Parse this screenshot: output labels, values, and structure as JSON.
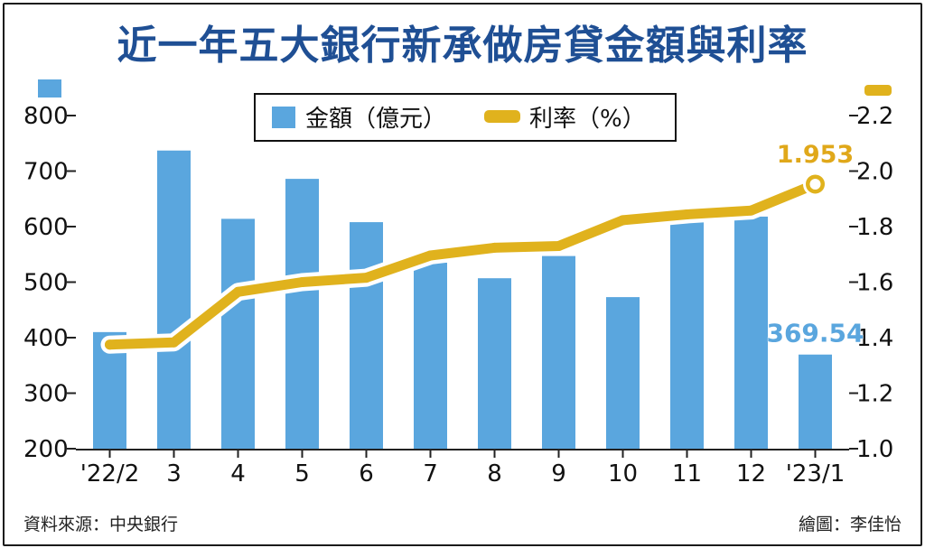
{
  "title": "近一年五大銀行新承做房貸金額與利率",
  "source": "資料來源：中央銀行",
  "credit": "繪圖：李佳怡",
  "chart_data": {
    "type": "bar",
    "categories": [
      "'22/2",
      "3",
      "4",
      "5",
      "6",
      "7",
      "8",
      "9",
      "10",
      "11",
      "12",
      "'23/1"
    ],
    "series": [
      {
        "name": "金額（億元）",
        "type": "bar",
        "axis": "left",
        "values": [
          410,
          737,
          614,
          686,
          608,
          535,
          507,
          547,
          473,
          612,
          618,
          369.54
        ],
        "color": "#5aa6de"
      },
      {
        "name": "利率（%）",
        "type": "line",
        "axis": "right",
        "values": [
          1.375,
          1.383,
          1.565,
          1.6,
          1.616,
          1.696,
          1.724,
          1.73,
          1.823,
          1.844,
          1.858,
          1.953
        ],
        "color": "#e0b21d"
      }
    ],
    "y_left": {
      "ylim": [
        200,
        800
      ],
      "ticks": [
        "200",
        "300",
        "400",
        "500",
        "600",
        "700",
        "800"
      ]
    },
    "y_right": {
      "ylim": [
        1.0,
        2.2
      ],
      "ticks": [
        "1.0",
        "1.2",
        "1.4",
        "1.6",
        "1.8",
        "2.0",
        "2.2"
      ]
    },
    "annotations": [
      {
        "text": "369.54",
        "series": 0,
        "index": 11,
        "color": "#5aa6de"
      },
      {
        "text": "1.953",
        "series": 1,
        "index": 11,
        "color": "#e0a81a"
      }
    ],
    "legend": "top-center",
    "grid": false
  }
}
